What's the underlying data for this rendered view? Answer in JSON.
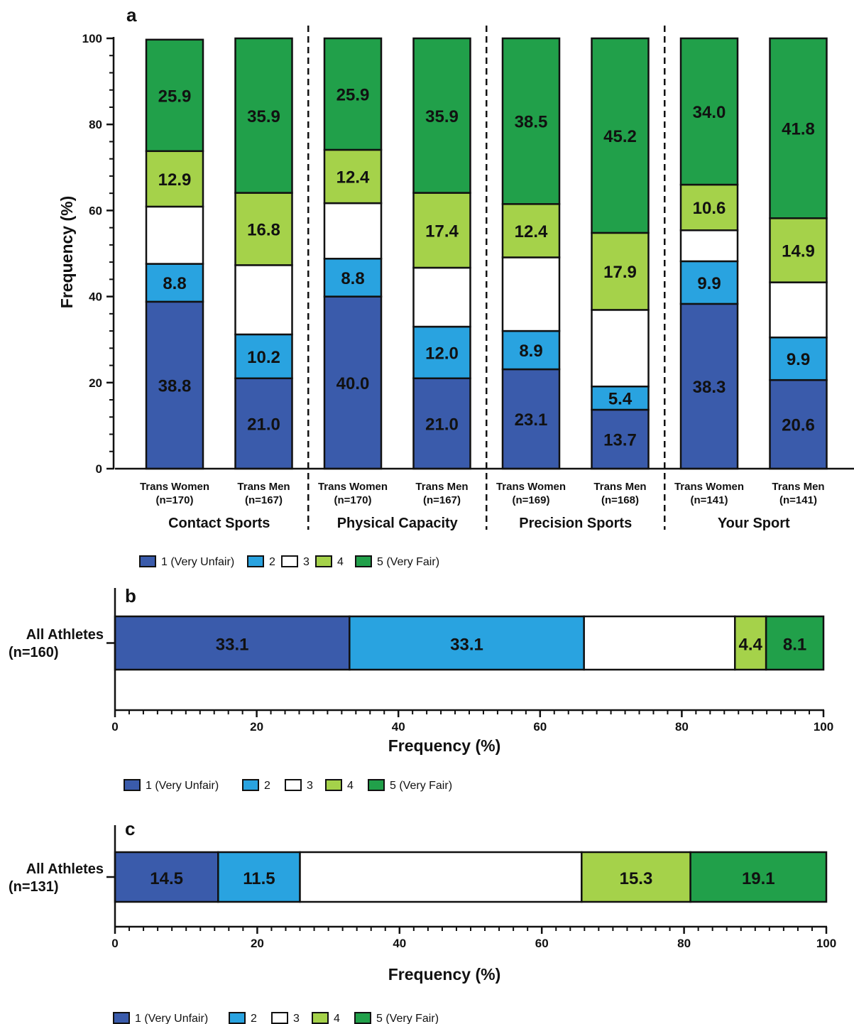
{
  "colors": {
    "1": "#3a5bab",
    "2": "#29a3e0",
    "3": "#ffffff",
    "4": "#a5d24a",
    "5": "#21a04a"
  },
  "legend": {
    "items": [
      {
        "key": "1",
        "label": "1 (Very Unfair)"
      },
      {
        "key": "2",
        "label": "2"
      },
      {
        "key": "3",
        "label": "3"
      },
      {
        "key": "4",
        "label": "4"
      },
      {
        "key": "5",
        "label": "5 (Very Fair)"
      }
    ]
  },
  "chart_data": [
    {
      "panel": "a",
      "type": "bar",
      "stacked": true,
      "orientation": "vertical",
      "ylabel": "Frequency (%)",
      "ylim": [
        0,
        100
      ],
      "yticks": [
        "0",
        "20",
        "40",
        "60",
        "80",
        "100"
      ],
      "groups": [
        "Contact Sports",
        "Physical Capacity",
        "Precision Sports",
        "Your Sport"
      ],
      "bars": [
        {
          "group": 0,
          "line1": "Trans Women",
          "line2": "(n=170)",
          "values": [
            38.8,
            8.8,
            13.3,
            12.9,
            25.9
          ],
          "labels": [
            "38.8",
            "8.8",
            "",
            "12.9",
            "25.9"
          ]
        },
        {
          "group": 0,
          "line1": "Trans Men",
          "line2": "(n=167)",
          "values": [
            21.0,
            10.2,
            16.1,
            16.8,
            35.9
          ],
          "labels": [
            "21.0",
            "10.2",
            "",
            "16.8",
            "35.9"
          ]
        },
        {
          "group": 1,
          "line1": "Trans Women",
          "line2": "(n=170)",
          "values": [
            40.0,
            8.8,
            12.9,
            12.4,
            25.9
          ],
          "labels": [
            "40.0",
            "8.8",
            "",
            "12.4",
            "25.9"
          ]
        },
        {
          "group": 1,
          "line1": "Trans Men",
          "line2": "(n=167)",
          "values": [
            21.0,
            12.0,
            13.7,
            17.4,
            35.9
          ],
          "labels": [
            "21.0",
            "12.0",
            "",
            "17.4",
            "35.9"
          ]
        },
        {
          "group": 2,
          "line1": "Trans Women",
          "line2": "(n=169)",
          "values": [
            23.1,
            8.9,
            17.1,
            12.4,
            38.5
          ],
          "labels": [
            "23.1",
            "8.9",
            "",
            "12.4",
            "38.5"
          ]
        },
        {
          "group": 2,
          "line1": "Trans Men",
          "line2": "(n=168)",
          "values": [
            13.7,
            5.4,
            17.8,
            17.9,
            45.2
          ],
          "labels": [
            "13.7",
            "5.4",
            "",
            "17.9",
            "45.2"
          ]
        },
        {
          "group": 3,
          "line1": "Trans Women",
          "line2": "(n=141)",
          "values": [
            38.3,
            9.9,
            7.2,
            10.6,
            34.0
          ],
          "labels": [
            "38.3",
            "9.9",
            "",
            "10.6",
            "34.0"
          ]
        },
        {
          "group": 3,
          "line1": "Trans Men",
          "line2": "(n=141)",
          "values": [
            20.6,
            9.9,
            12.8,
            14.9,
            41.8
          ],
          "labels": [
            "20.6",
            "9.9",
            "",
            "14.9",
            "41.8"
          ]
        }
      ]
    },
    {
      "panel": "b",
      "type": "bar",
      "stacked": true,
      "orientation": "horizontal",
      "xlabel": "Frequency (%)",
      "xlim": [
        0,
        100
      ],
      "xticks": [
        "0",
        "20",
        "40",
        "60",
        "80",
        "100"
      ],
      "category_line1": "All Athletes",
      "category_line2": "(n=160)",
      "values": [
        33.1,
        33.1,
        21.3,
        4.4,
        8.1
      ],
      "labels": [
        "33.1",
        "33.1",
        "",
        "4.4",
        "8.1"
      ]
    },
    {
      "panel": "c",
      "type": "bar",
      "stacked": true,
      "orientation": "horizontal",
      "xlabel": "Frequency (%)",
      "xlim": [
        0,
        100
      ],
      "xticks": [
        "0",
        "20",
        "40",
        "60",
        "80",
        "100"
      ],
      "category_line1": "All Athletes",
      "category_line2": "(n=131)",
      "values": [
        14.5,
        11.5,
        39.6,
        15.3,
        19.1
      ],
      "labels": [
        "14.5",
        "11.5",
        "",
        "15.3",
        "19.1"
      ]
    }
  ]
}
